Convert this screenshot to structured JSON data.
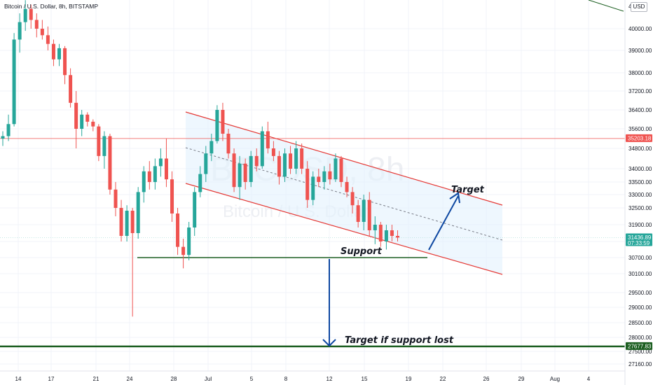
{
  "header": {
    "title": "Bitcoin / U.S. Dollar, 8h, BITSTAMP",
    "currency_badge": "USD"
  },
  "watermark": {
    "symbol": "BTCUSD, 8h",
    "name": "Bitcoin / U.S. Dollar"
  },
  "colors": {
    "up": "#26a69a",
    "down": "#ef5350",
    "channel": "#e53935",
    "channel_fill": "#e3f2fd",
    "support": "#1b5e20",
    "arrow": "#0d47a1",
    "resistance": "#ef5350"
  },
  "chart_data": {
    "type": "candlestick",
    "title": "Bitcoin / U.S. Dollar, 8h, BITSTAMP",
    "ylim": [
      26700,
      41500
    ],
    "y_ticks": [
      "40000.00",
      "39000.00",
      "38000.00",
      "37200.00",
      "36400.00",
      "35600.00",
      "34800.00",
      "34000.00",
      "33500.00",
      "33000.00",
      "32500.00",
      "31900.00",
      "31300.00",
      "30700.00",
      "30100.00",
      "29500.00",
      "29000.00",
      "28500.00",
      "28000.00",
      "27500.00",
      "27160.00"
    ],
    "y_tick_top": "41",
    "x_ticks": [
      "14",
      "17",
      "21",
      "24",
      "28",
      "Jul",
      "5",
      "8",
      "12",
      "15",
      "19",
      "22",
      "26",
      "29",
      "Aug",
      "4"
    ],
    "price_labels": [
      {
        "value": 35203.18,
        "label": "35203.18",
        "color": "#ef5350"
      },
      {
        "value": 31436.89,
        "label": "31436.89",
        "sub": "07:33:59",
        "color": "#26a69a"
      },
      {
        "value": 27677.83,
        "label": "27677.83",
        "color": "#1b5e20"
      }
    ],
    "candles": [
      {
        "o": 35200,
        "h": 35500,
        "l": 34900,
        "c": 35300
      },
      {
        "o": 35300,
        "h": 36200,
        "l": 35100,
        "c": 35800
      },
      {
        "o": 35800,
        "h": 39800,
        "l": 35700,
        "c": 39500
      },
      {
        "o": 39500,
        "h": 40700,
        "l": 38900,
        "c": 40300
      },
      {
        "o": 40300,
        "h": 41300,
        "l": 39900,
        "c": 40900
      },
      {
        "o": 40900,
        "h": 41100,
        "l": 40000,
        "c": 40400
      },
      {
        "o": 40400,
        "h": 40700,
        "l": 39600,
        "c": 40000
      },
      {
        "o": 40000,
        "h": 40400,
        "l": 39500,
        "c": 39700
      },
      {
        "o": 39700,
        "h": 40100,
        "l": 39000,
        "c": 39300
      },
      {
        "o": 39300,
        "h": 39500,
        "l": 38300,
        "c": 38600
      },
      {
        "o": 38600,
        "h": 39300,
        "l": 38300,
        "c": 39100
      },
      {
        "o": 39100,
        "h": 39200,
        "l": 37500,
        "c": 37900
      },
      {
        "o": 37900,
        "h": 38200,
        "l": 36500,
        "c": 36700
      },
      {
        "o": 36700,
        "h": 37200,
        "l": 34800,
        "c": 35600
      },
      {
        "o": 35600,
        "h": 36400,
        "l": 35300,
        "c": 36200
      },
      {
        "o": 36200,
        "h": 36300,
        "l": 35700,
        "c": 35900
      },
      {
        "o": 35900,
        "h": 36000,
        "l": 35500,
        "c": 35700
      },
      {
        "o": 35700,
        "h": 35800,
        "l": 34300,
        "c": 34500
      },
      {
        "o": 34500,
        "h": 35500,
        "l": 34000,
        "c": 35300
      },
      {
        "o": 35300,
        "h": 35400,
        "l": 33000,
        "c": 33200
      },
      {
        "o": 33200,
        "h": 33500,
        "l": 32200,
        "c": 32500
      },
      {
        "o": 32500,
        "h": 32800,
        "l": 31300,
        "c": 31500
      },
      {
        "o": 31500,
        "h": 32600,
        "l": 31300,
        "c": 32400
      },
      {
        "o": 32400,
        "h": 32500,
        "l": 28700,
        "c": 31600
      },
      {
        "o": 31600,
        "h": 33300,
        "l": 31400,
        "c": 33100
      },
      {
        "o": 33100,
        "h": 34100,
        "l": 32700,
        "c": 33900
      },
      {
        "o": 33900,
        "h": 34300,
        "l": 33200,
        "c": 33500
      },
      {
        "o": 33500,
        "h": 34400,
        "l": 33200,
        "c": 34100
      },
      {
        "o": 34100,
        "h": 34800,
        "l": 33700,
        "c": 34400
      },
      {
        "o": 34400,
        "h": 35200,
        "l": 33300,
        "c": 33600
      },
      {
        "o": 33600,
        "h": 33900,
        "l": 32000,
        "c": 32300
      },
      {
        "o": 32300,
        "h": 32500,
        "l": 30800,
        "c": 31100
      },
      {
        "o": 31100,
        "h": 31400,
        "l": 30300,
        "c": 30800
      },
      {
        "o": 30800,
        "h": 32000,
        "l": 30600,
        "c": 31800
      },
      {
        "o": 31800,
        "h": 33300,
        "l": 31500,
        "c": 33100
      },
      {
        "o": 33100,
        "h": 34100,
        "l": 32900,
        "c": 33800
      },
      {
        "o": 33800,
        "h": 34900,
        "l": 33500,
        "c": 34600
      },
      {
        "o": 34600,
        "h": 35400,
        "l": 34300,
        "c": 35100
      },
      {
        "o": 35100,
        "h": 36600,
        "l": 35000,
        "c": 36400
      },
      {
        "o": 36400,
        "h": 36700,
        "l": 35100,
        "c": 35400
      },
      {
        "o": 35400,
        "h": 35600,
        "l": 34400,
        "c": 34600
      },
      {
        "o": 34600,
        "h": 34800,
        "l": 33100,
        "c": 33300
      },
      {
        "o": 33300,
        "h": 34500,
        "l": 32800,
        "c": 34200
      },
      {
        "o": 34200,
        "h": 34400,
        "l": 33200,
        "c": 33500
      },
      {
        "o": 33500,
        "h": 34700,
        "l": 33300,
        "c": 34500
      },
      {
        "o": 34500,
        "h": 34800,
        "l": 33900,
        "c": 34100
      },
      {
        "o": 34100,
        "h": 35700,
        "l": 34000,
        "c": 35500
      },
      {
        "o": 35500,
        "h": 35900,
        "l": 34600,
        "c": 34800
      },
      {
        "o": 34800,
        "h": 35100,
        "l": 34300,
        "c": 34500
      },
      {
        "o": 34500,
        "h": 34700,
        "l": 33400,
        "c": 33700
      },
      {
        "o": 33700,
        "h": 34800,
        "l": 33500,
        "c": 34600
      },
      {
        "o": 34600,
        "h": 34900,
        "l": 33800,
        "c": 34000
      },
      {
        "o": 34000,
        "h": 35100,
        "l": 33800,
        "c": 34800
      },
      {
        "o": 34800,
        "h": 35000,
        "l": 33800,
        "c": 34000
      },
      {
        "o": 34000,
        "h": 34300,
        "l": 32500,
        "c": 32800
      },
      {
        "o": 32800,
        "h": 33900,
        "l": 32600,
        "c": 33700
      },
      {
        "o": 33700,
        "h": 34000,
        "l": 33300,
        "c": 33500
      },
      {
        "o": 33500,
        "h": 34100,
        "l": 33200,
        "c": 33900
      },
      {
        "o": 33900,
        "h": 34200,
        "l": 33400,
        "c": 33600
      },
      {
        "o": 33600,
        "h": 34600,
        "l": 33500,
        "c": 34400
      },
      {
        "o": 34400,
        "h": 34500,
        "l": 33300,
        "c": 33500
      },
      {
        "o": 33500,
        "h": 33700,
        "l": 32900,
        "c": 33100
      },
      {
        "o": 33100,
        "h": 33300,
        "l": 32300,
        "c": 32600
      },
      {
        "o": 32600,
        "h": 32800,
        "l": 31800,
        "c": 32000
      },
      {
        "o": 32000,
        "h": 33000,
        "l": 31700,
        "c": 32800
      },
      {
        "o": 32800,
        "h": 33100,
        "l": 31500,
        "c": 31700
      },
      {
        "o": 31700,
        "h": 32200,
        "l": 31200,
        "c": 31900
      },
      {
        "o": 31900,
        "h": 32000,
        "l": 31100,
        "c": 31300
      },
      {
        "o": 31300,
        "h": 31900,
        "l": 31000,
        "c": 31700
      },
      {
        "o": 31700,
        "h": 31900,
        "l": 31300,
        "c": 31500
      },
      {
        "o": 31500,
        "h": 31700,
        "l": 31300,
        "c": 31440
      }
    ],
    "annotations": {
      "target_label": "Target",
      "support_label": "Support",
      "target_if_lost_label": "Target if support lost"
    }
  }
}
